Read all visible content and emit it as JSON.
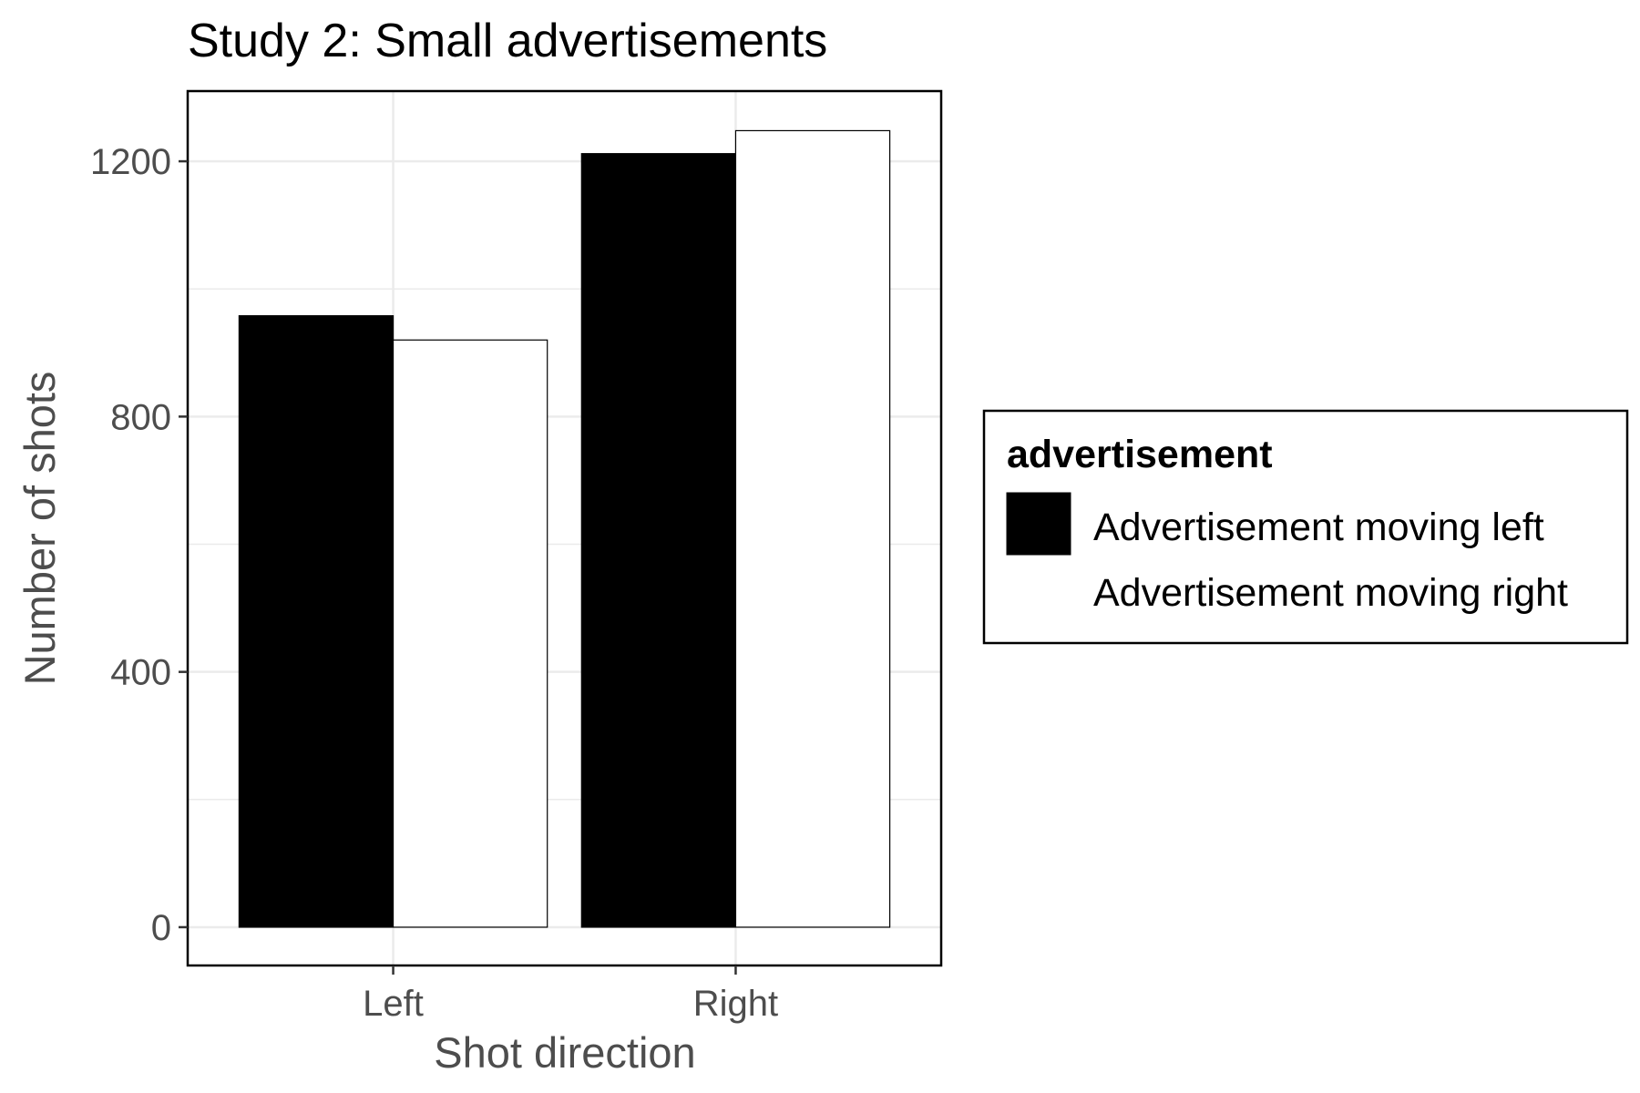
{
  "chart_data": {
    "type": "bar",
    "title": "Study 2: Small advertisements",
    "xlabel": "Shot direction",
    "ylabel": "Number of shots",
    "categories": [
      "Left",
      "Right"
    ],
    "series": [
      {
        "name": "Advertisement moving left",
        "values": [
          958,
          1212
        ],
        "color": "#000000"
      },
      {
        "name": "Advertisement moving right",
        "values": [
          920,
          1248
        ],
        "color": "#ffffff"
      }
    ],
    "ylim": [
      -60,
      1310
    ],
    "yticks": [
      0,
      400,
      800,
      1200
    ],
    "grid": true,
    "legend": {
      "title": "advertisement",
      "position": "right"
    }
  }
}
